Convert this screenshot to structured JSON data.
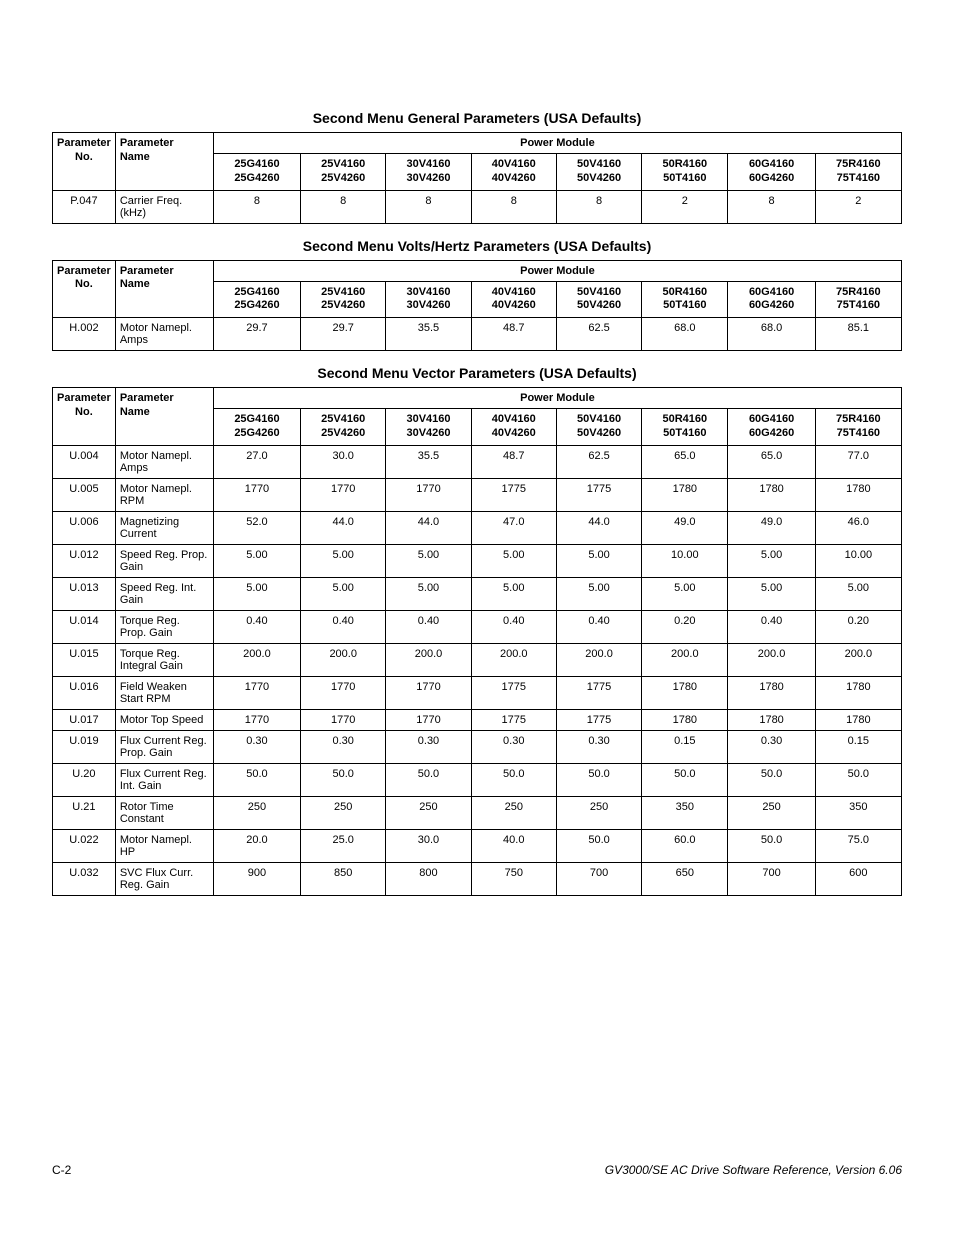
{
  "power_module_header": "Power Module",
  "param_no_header": "Parameter No.",
  "param_name_header": "Parameter Name",
  "columns": [
    [
      "25G4160",
      "25G4260"
    ],
    [
      "25V4160",
      "25V4260"
    ],
    [
      "30V4160",
      "30V4260"
    ],
    [
      "40V4160",
      "40V4260"
    ],
    [
      "50V4160",
      "50V4260"
    ],
    [
      "50R4160",
      "50T4160"
    ],
    [
      "60G4160",
      "60G4260"
    ],
    [
      "75R4160",
      "75T4160"
    ]
  ],
  "tables": [
    {
      "title": "Second Menu General Parameters (USA Defaults)",
      "rows": [
        {
          "no": "P.047",
          "name": "Carrier Freq. (kHz)",
          "vals": [
            "8",
            "8",
            "8",
            "8",
            "8",
            "2",
            "8",
            "2"
          ]
        }
      ]
    },
    {
      "title": "Second Menu Volts/Hertz Parameters (USA Defaults)",
      "rows": [
        {
          "no": "H.002",
          "name": "Motor Namepl. Amps",
          "vals": [
            "29.7",
            "29.7",
            "35.5",
            "48.7",
            "62.5",
            "68.0",
            "68.0",
            "85.1"
          ]
        }
      ]
    },
    {
      "title": "Second Menu Vector Parameters (USA Defaults)",
      "rows": [
        {
          "no": "U.004",
          "name": "Motor Namepl. Amps",
          "vals": [
            "27.0",
            "30.0",
            "35.5",
            "48.7",
            "62.5",
            "65.0",
            "65.0",
            "77.0"
          ]
        },
        {
          "no": "U.005",
          "name": "Motor Namepl. RPM",
          "vals": [
            "1770",
            "1770",
            "1770",
            "1775",
            "1775",
            "1780",
            "1780",
            "1780"
          ]
        },
        {
          "no": "U.006",
          "name": "Magnetizing Current",
          "vals": [
            "52.0",
            "44.0",
            "44.0",
            "47.0",
            "44.0",
            "49.0",
            "49.0",
            "46.0"
          ]
        },
        {
          "no": "U.012",
          "name": "Speed Reg. Prop. Gain",
          "vals": [
            "5.00",
            "5.00",
            "5.00",
            "5.00",
            "5.00",
            "10.00",
            "5.00",
            "10.00"
          ]
        },
        {
          "no": "U.013",
          "name": "Speed Reg. Int. Gain",
          "vals": [
            "5.00",
            "5.00",
            "5.00",
            "5.00",
            "5.00",
            "5.00",
            "5.00",
            "5.00"
          ]
        },
        {
          "no": "U.014",
          "name": "Torque Reg. Prop. Gain",
          "vals": [
            "0.40",
            "0.40",
            "0.40",
            "0.40",
            "0.40",
            "0.20",
            "0.40",
            "0.20"
          ]
        },
        {
          "no": "U.015",
          "name": "Torque Reg. Integral Gain",
          "vals": [
            "200.0",
            "200.0",
            "200.0",
            "200.0",
            "200.0",
            "200.0",
            "200.0",
            "200.0"
          ]
        },
        {
          "no": "U.016",
          "name": "Field Weaken Start RPM",
          "vals": [
            "1770",
            "1770",
            "1770",
            "1775",
            "1775",
            "1780",
            "1780",
            "1780"
          ]
        },
        {
          "no": "U.017",
          "name": "Motor Top Speed",
          "vals": [
            "1770",
            "1770",
            "1770",
            "1775",
            "1775",
            "1780",
            "1780",
            "1780"
          ]
        },
        {
          "no": "U.019",
          "name": "Flux Current Reg. Prop. Gain",
          "vals": [
            "0.30",
            "0.30",
            "0.30",
            "0.30",
            "0.30",
            "0.15",
            "0.30",
            "0.15"
          ]
        },
        {
          "no": "U.20",
          "name": "Flux Current Reg. Int. Gain",
          "vals": [
            "50.0",
            "50.0",
            "50.0",
            "50.0",
            "50.0",
            "50.0",
            "50.0",
            "50.0"
          ]
        },
        {
          "no": "U.21",
          "name": "Rotor Time Constant",
          "vals": [
            "250",
            "250",
            "250",
            "250",
            "250",
            "350",
            "250",
            "350"
          ]
        },
        {
          "no": "U.022",
          "name": "Motor Namepl. HP",
          "vals": [
            "20.0",
            "25.0",
            "30.0",
            "40.0",
            "50.0",
            "60.0",
            "50.0",
            "75.0"
          ]
        },
        {
          "no": "U.032",
          "name": "SVC Flux Curr. Reg. Gain",
          "vals": [
            "900",
            "850",
            "800",
            "750",
            "700",
            "650",
            "700",
            "600"
          ]
        }
      ]
    }
  ],
  "footer": {
    "left": "C-2",
    "right": "GV3000/SE AC Drive Software Reference, Version 6.06"
  }
}
